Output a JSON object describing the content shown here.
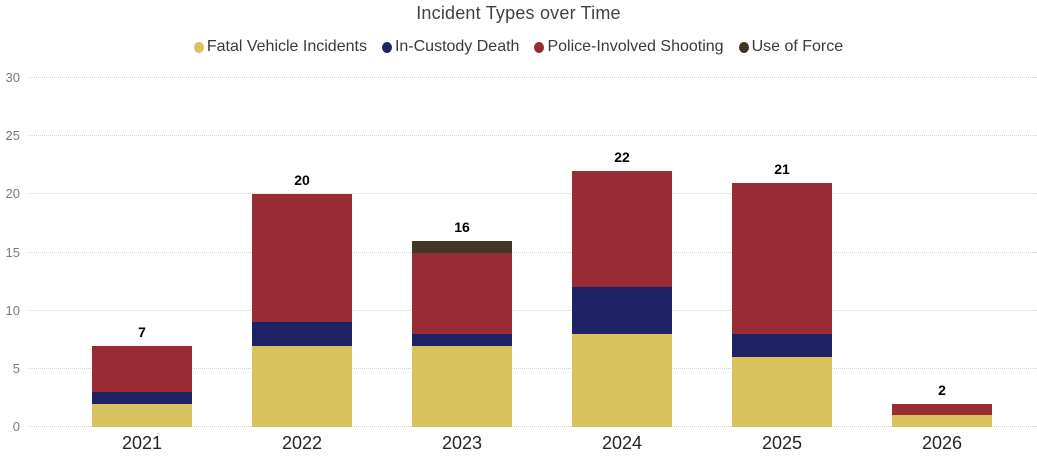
{
  "title": "Incident Types over Time",
  "chart_data": {
    "type": "bar",
    "stacked": true,
    "title": "Incident Types over Time",
    "xlabel": "",
    "ylabel": "",
    "categories": [
      "2021",
      "2022",
      "2023",
      "2024",
      "2025",
      "2026"
    ],
    "series": [
      {
        "name": "Fatal Vehicle Incidents",
        "color": "#D8C35C",
        "values": [
          2,
          7,
          7,
          8,
          6,
          1
        ]
      },
      {
        "name": "In-Custody Death",
        "color": "#1F2366",
        "values": [
          1,
          2,
          1,
          4,
          2,
          0
        ]
      },
      {
        "name": "Police-Involved Shooting",
        "color": "#982B33",
        "values": [
          4,
          11,
          7,
          10,
          13,
          1
        ]
      },
      {
        "name": "Use of Force",
        "color": "#413528",
        "values": [
          0,
          0,
          1,
          0,
          0,
          0
        ]
      }
    ],
    "totals": [
      7,
      20,
      16,
      22,
      21,
      2
    ],
    "ylim": [
      0,
      30
    ],
    "yticks": [
      0,
      5,
      10,
      15,
      20,
      25,
      30
    ],
    "grid": "horizontal-dotted",
    "legend_position": "top"
  },
  "colors": {
    "title_text": "#424242",
    "legend_text": "#3b3a39",
    "ytick_text": "#7a7a7a",
    "xtick_text": "#252423",
    "gridline": "#d2d2d2",
    "background": "#ffffff"
  }
}
